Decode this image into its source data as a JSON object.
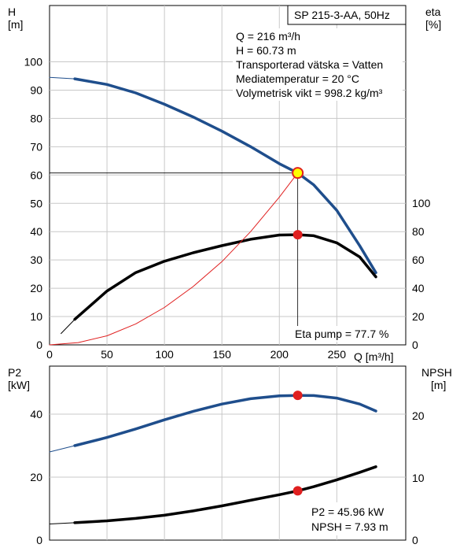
{
  "chart_data": [
    {
      "type": "line",
      "title": "SP 215-3-AA, 50Hz",
      "xlabel": "Q [m³/h]",
      "ylabel_left": [
        "H",
        "[m]"
      ],
      "ylabel_right": [
        "eta",
        "[%]"
      ],
      "xlim": [
        0,
        300
      ],
      "ylim_left": [
        0,
        100
      ],
      "ylim_right": [
        0,
        100
      ],
      "xticks": [
        0,
        50,
        100,
        150,
        200,
        250
      ],
      "yticks_left": [
        0,
        10,
        20,
        30,
        40,
        50,
        60,
        70,
        80,
        90,
        100
      ],
      "yticks_right": [
        0,
        20,
        40,
        60,
        80,
        100
      ],
      "grid": true,
      "info_lines": [
        "Q = 216 m³/h",
        "H = 60.73 m",
        "Transporterad vätska = Vatten",
        "Mediatemperatur = 20 °C",
        "Volymetrisk vikt = 998.2 kg/m³"
      ],
      "eta_label": "Eta pump = 77.7 %",
      "colors": {
        "head": "#1f4e8c",
        "eta": "#000000",
        "system": "#e02020",
        "marker": "#e02020",
        "op_point": "#ffff00"
      },
      "series": [
        {
          "axis": "left",
          "color": "#1f4e8c",
          "style": "thin_extension",
          "x": [
            0,
            22
          ],
          "y": [
            94.5,
            94
          ]
        },
        {
          "axis": "left",
          "color": "#1f4e8c",
          "x": [
            22,
            50,
            75,
            100,
            125,
            150,
            175,
            200,
            216,
            230,
            250,
            270,
            284
          ],
          "y": [
            94,
            92,
            89,
            85,
            80.5,
            75.5,
            70,
            64,
            60.73,
            56.5,
            47.5,
            35,
            25.5
          ]
        },
        {
          "axis": "right",
          "color": "#000000",
          "style": "thin_extension",
          "x": [
            10,
            22
          ],
          "y": [
            8,
            18
          ]
        },
        {
          "axis": "right",
          "color": "#000000",
          "x": [
            22,
            50,
            75,
            100,
            125,
            150,
            175,
            200,
            216,
            230,
            250,
            270,
            284
          ],
          "y": [
            18,
            38,
            51,
            59,
            65,
            70,
            74.5,
            77.5,
            77.7,
            77,
            72,
            62,
            48
          ]
        },
        {
          "axis": "left",
          "color": "#e02020",
          "style": "system_curve",
          "x": [
            0,
            25,
            50,
            75,
            100,
            125,
            150,
            175,
            200,
            216
          ],
          "y": [
            0,
            0.8,
            3.2,
            7.4,
            13.2,
            20.6,
            29.4,
            40,
            52.2,
            60.73
          ]
        }
      ],
      "operating_point": {
        "q": 216,
        "h": 60.73,
        "eta": 77.7
      }
    },
    {
      "type": "line",
      "xlabel": "",
      "ylabel_left": [
        "P2",
        "[kW]"
      ],
      "ylabel_right": [
        "NPSH",
        "[m]"
      ],
      "xlim": [
        0,
        300
      ],
      "ylim_left": [
        0,
        50
      ],
      "ylim_right": [
        0,
        25
      ],
      "yticks_left": [
        0,
        20,
        40
      ],
      "yticks_right": [
        0,
        10,
        20
      ],
      "grid": true,
      "info_lines": [
        "P2 = 45.96 kW",
        "NPSH = 7.93 m"
      ],
      "series": [
        {
          "axis": "left",
          "color": "#1f4e8c",
          "style": "thin_extension",
          "x": [
            0,
            22
          ],
          "y": [
            28,
            30
          ]
        },
        {
          "axis": "left",
          "color": "#1f4e8c",
          "x": [
            22,
            50,
            75,
            100,
            125,
            150,
            175,
            200,
            216,
            230,
            250,
            270,
            284
          ],
          "y": [
            30,
            32.6,
            35.3,
            38.2,
            40.9,
            43.2,
            44.9,
            45.8,
            45.96,
            45.9,
            45.1,
            43.2,
            41
          ]
        },
        {
          "axis": "right",
          "color": "#000000",
          "style": "thin_extension",
          "x": [
            0,
            22
          ],
          "y": [
            2.6,
            2.8
          ]
        },
        {
          "axis": "right",
          "color": "#000000",
          "x": [
            22,
            50,
            75,
            100,
            125,
            150,
            175,
            200,
            216,
            230,
            250,
            270,
            284
          ],
          "y": [
            2.8,
            3.1,
            3.5,
            4.0,
            4.7,
            5.5,
            6.4,
            7.3,
            7.93,
            8.6,
            9.7,
            10.9,
            11.8
          ]
        }
      ],
      "markers": [
        {
          "axis": "left",
          "x": 216,
          "y": 45.96
        },
        {
          "axis": "right",
          "x": 216,
          "y": 7.93
        }
      ]
    }
  ]
}
